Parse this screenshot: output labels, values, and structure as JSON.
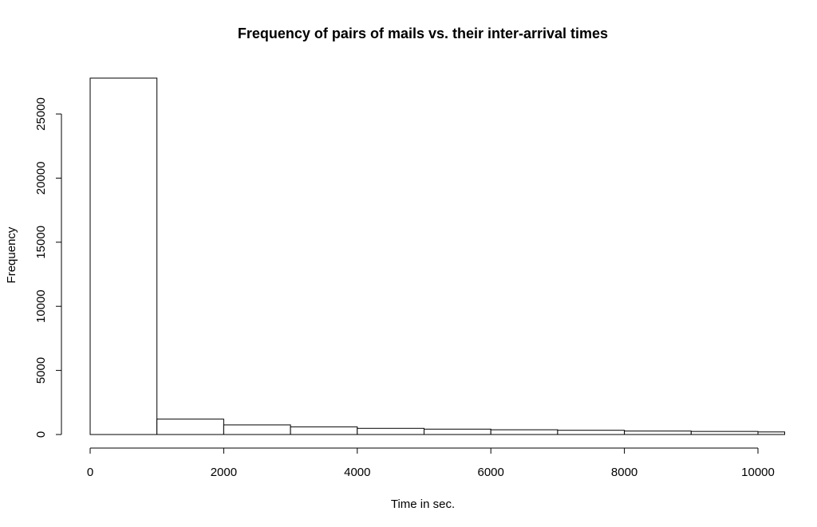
{
  "chart_data": {
    "type": "bar",
    "title": "Frequency of pairs of mails vs. their inter-arrival times",
    "xlabel": "Time in sec.",
    "ylabel": "Frequency",
    "bin_edges": [
      0,
      1000,
      2000,
      3000,
      4000,
      5000,
      6000,
      7000,
      8000,
      9000,
      10000,
      10400
    ],
    "values": [
      27800,
      1200,
      750,
      600,
      480,
      420,
      370,
      330,
      270,
      240,
      200
    ],
    "x_ticks": [
      0,
      2000,
      4000,
      6000,
      8000,
      10000
    ],
    "y_ticks": [
      0,
      5000,
      10000,
      15000,
      20000,
      25000
    ],
    "xlim": [
      0,
      10400
    ],
    "ylim": [
      0,
      28000
    ],
    "grid": false,
    "legend": "none",
    "bar_fill": "#ffffff",
    "bar_stroke": "#000000"
  }
}
